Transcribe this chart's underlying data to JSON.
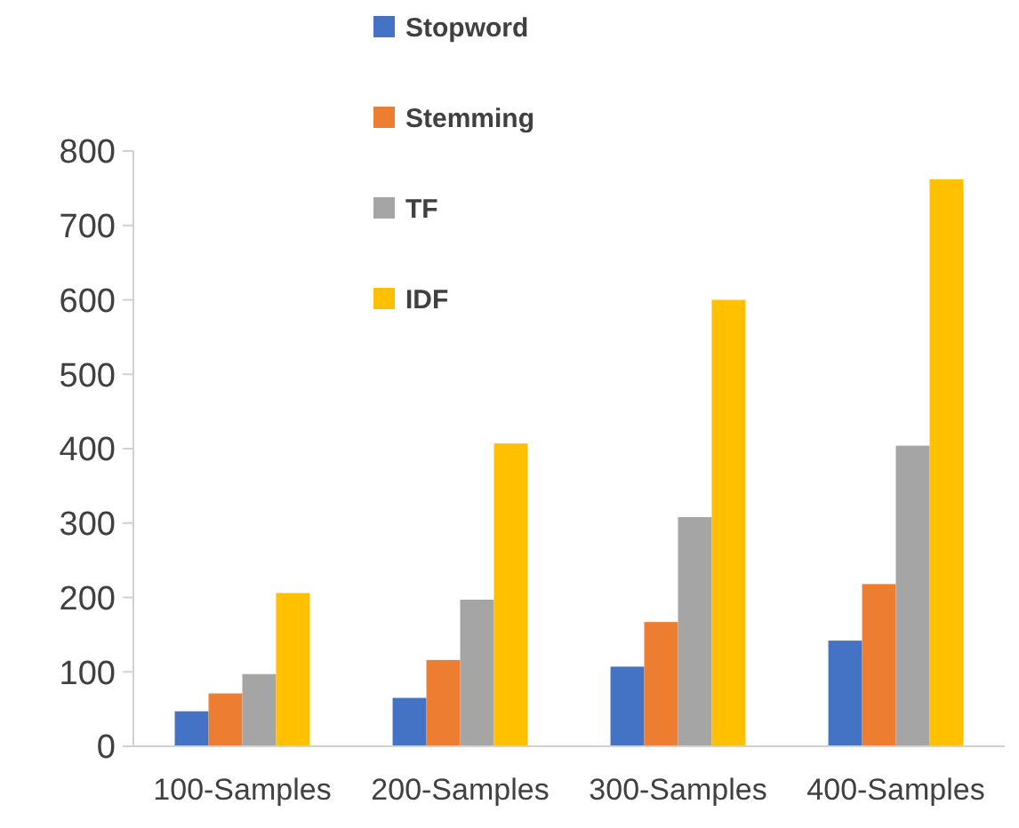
{
  "chart_data": {
    "type": "bar",
    "categories": [
      "100-Samples",
      "200-Samples",
      "300-Samples",
      "400-Samples"
    ],
    "series": [
      {
        "name": "Stopword",
        "color": "#4472c4",
        "values": [
          47,
          65,
          107,
          142
        ]
      },
      {
        "name": "Stemming",
        "color": "#ed7d31",
        "values": [
          71,
          116,
          167,
          218
        ]
      },
      {
        "name": "TF",
        "color": "#a5a5a5",
        "values": [
          97,
          197,
          308,
          404
        ]
      },
      {
        "name": "IDF",
        "color": "#ffc000",
        "values": [
          206,
          407,
          600,
          762
        ]
      }
    ],
    "ylim": [
      0,
      800
    ],
    "yticks": [
      0,
      100,
      200,
      300,
      400,
      500,
      600,
      700,
      800
    ],
    "grid": false,
    "legend": "top left"
  }
}
